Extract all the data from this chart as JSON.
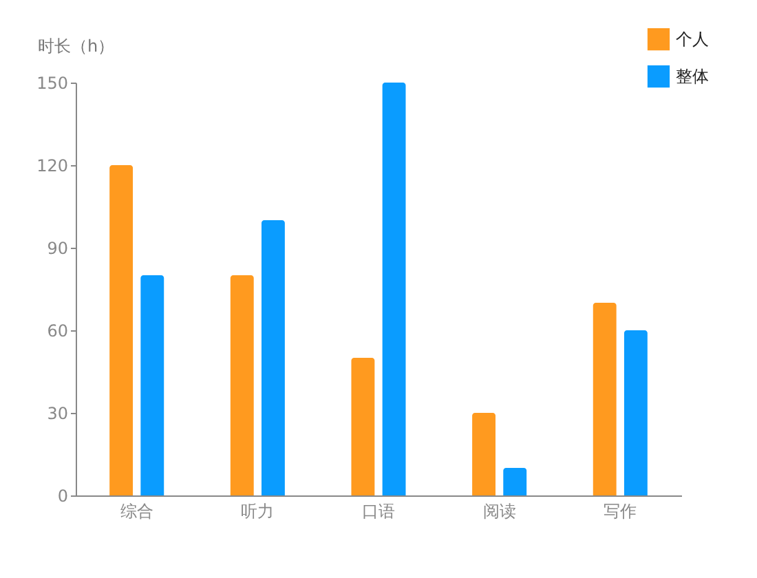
{
  "chart_data": {
    "type": "bar",
    "ylabel": "时长（h）",
    "categories": [
      "综合",
      "听力",
      "口语",
      "阅读",
      "写作"
    ],
    "series": [
      {
        "name": "个人",
        "color": "#ff9a1f",
        "values": [
          120,
          80,
          50,
          30,
          70
        ]
      },
      {
        "name": "整体",
        "color": "#0a9cff",
        "values": [
          80,
          100,
          150,
          10,
          60
        ]
      }
    ],
    "ylim": [
      0,
      150
    ],
    "yticks": [
      0,
      30,
      60,
      90,
      120,
      150
    ],
    "grid": false,
    "legend": "top right"
  }
}
